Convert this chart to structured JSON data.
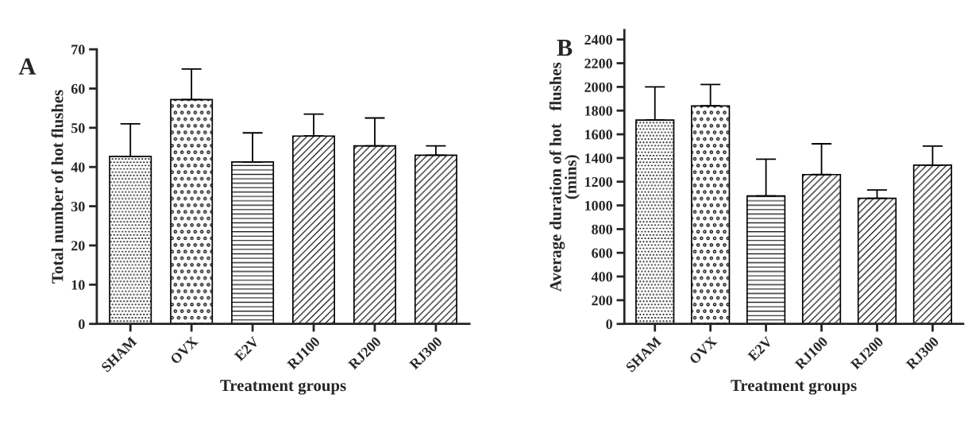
{
  "chart_data": [
    {
      "type": "bar",
      "title": "A",
      "xlabel": "Treatment groups",
      "ylabel": "Total number of hot flushes",
      "categories": [
        "SHAM",
        "OVX",
        "E2V",
        "RJ100",
        "RJ200",
        "RJ300"
      ],
      "values": [
        42.7,
        57.2,
        41.3,
        47.9,
        45.4,
        43.0
      ],
      "errors": [
        [
          42.7,
          51
        ],
        [
          57.2,
          65
        ],
        [
          41.3,
          48.7
        ],
        [
          47.9,
          53.5
        ],
        [
          45.4,
          52.5
        ],
        [
          43.0,
          45.4
        ]
      ],
      "color": "#000000",
      "ylim": [
        0,
        70
      ],
      "yticks": [
        0,
        10,
        20,
        30,
        40,
        50,
        60,
        70
      ],
      "grid": false,
      "legend": false
    },
    {
      "type": "bar",
      "title": "B",
      "xlabel": "Treatment groups",
      "ylabel": "Average duration of hot   flushes\n(mins)",
      "categories": [
        "SHAM",
        "OVX",
        "E2V",
        "RJ100",
        "RJ200",
        "RJ300"
      ],
      "values": [
        1720,
        1840,
        1080,
        1260,
        1060,
        1340
      ],
      "errors": [
        [
          1720,
          2000
        ],
        [
          1840,
          2020
        ],
        [
          1080,
          1390
        ],
        [
          1260,
          1520
        ],
        [
          1060,
          1130
        ],
        [
          1340,
          1500
        ]
      ],
      "color": "#000000",
      "ylim": [
        0,
        2480
      ],
      "yticks": [
        0,
        200,
        400,
        600,
        800,
        1000,
        1200,
        1400,
        1600,
        1800,
        2000,
        2200,
        2400
      ],
      "grid": false,
      "legend": false
    }
  ]
}
